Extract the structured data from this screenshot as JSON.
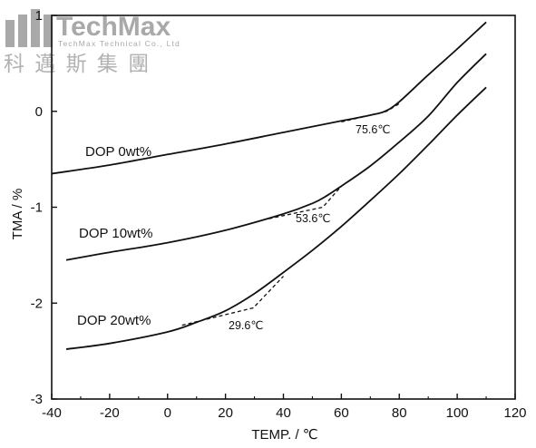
{
  "watermark": {
    "brand": "TechMax",
    "subtitle": "TechMax Technical Co., Ltd",
    "chinese": "科 邁 斯 集 團"
  },
  "chart_data": {
    "type": "line",
    "xlabel": "TEMP. / ℃",
    "ylabel": "TMA / %",
    "xlim": [
      -40,
      120
    ],
    "ylim": [
      -3,
      1
    ],
    "xticks": [
      -40,
      -20,
      0,
      20,
      40,
      60,
      80,
      100,
      120
    ],
    "xtick_labels": [
      "-40",
      "-20",
      "0",
      "20",
      "40",
      "60",
      "80",
      "100",
      "120"
    ],
    "yticks": [
      -3,
      -2,
      -1,
      0,
      1
    ],
    "ytick_labels": [
      "-3",
      "-2",
      "-1",
      "0",
      "1"
    ],
    "grid": false,
    "legend": "none",
    "series": [
      {
        "name": "DOP 0wt%",
        "x": [
          -40,
          -20,
          0,
          20,
          40,
          60,
          70,
          75,
          80,
          90,
          100,
          110
        ],
        "y": [
          -0.65,
          -0.56,
          -0.45,
          -0.34,
          -0.22,
          -0.1,
          -0.04,
          0.0,
          0.1,
          0.38,
          0.65,
          0.93
        ]
      },
      {
        "name": "DOP 10wt%",
        "x": [
          -35,
          -20,
          0,
          20,
          40,
          50,
          55,
          60,
          70,
          80,
          90,
          100,
          110
        ],
        "y": [
          -1.55,
          -1.47,
          -1.37,
          -1.24,
          -1.07,
          -0.96,
          -0.88,
          -0.78,
          -0.57,
          -0.32,
          -0.05,
          0.3,
          0.6
        ]
      },
      {
        "name": "DOP 20wt%",
        "x": [
          -35,
          -20,
          0,
          10,
          20,
          30,
          40,
          50,
          60,
          70,
          80,
          90,
          100,
          110
        ],
        "y": [
          -2.48,
          -2.42,
          -2.3,
          -2.2,
          -2.08,
          -1.9,
          -1.68,
          -1.45,
          -1.2,
          -0.93,
          -0.65,
          -0.35,
          -0.04,
          0.25
        ]
      }
    ],
    "annotations": [
      {
        "label": "75.6℃",
        "tangent_x": [
          60,
          75.6,
          80
        ],
        "tangent_y": [
          -0.11,
          0.0,
          0.08
        ]
      },
      {
        "label": "53.6℃",
        "tangent_x": [
          35,
          53.6,
          60
        ],
        "tangent_y": [
          -1.12,
          -1.0,
          -0.78
        ]
      },
      {
        "label": "29.6℃",
        "tangent_x": [
          5,
          29.6,
          40
        ],
        "tangent_y": [
          -2.23,
          -2.05,
          -1.72
        ]
      }
    ]
  }
}
